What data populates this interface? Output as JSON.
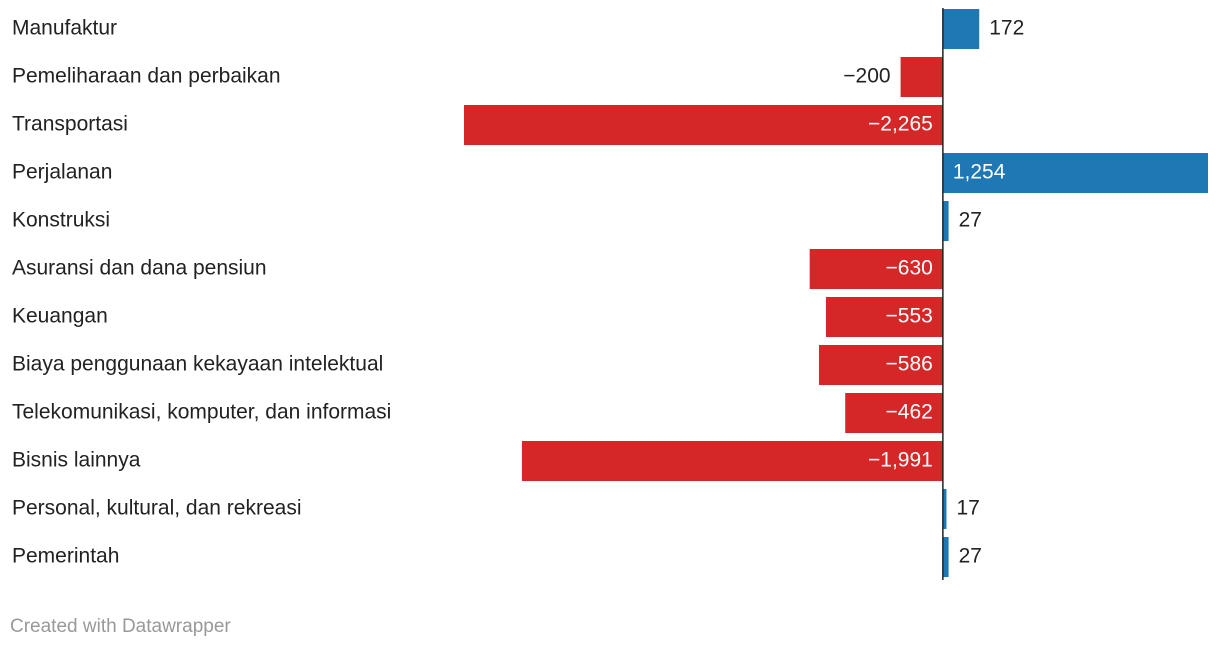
{
  "chart_data": {
    "type": "bar",
    "orientation": "horizontal",
    "categories": [
      "Manufaktur",
      "Pemeliharaan dan perbaikan",
      "Transportasi",
      "Perjalanan",
      "Konstruksi",
      "Asuransi dan dana pensiun",
      "Keuangan",
      "Biaya penggunaan kekayaan intelektual",
      "Telekomunikasi, komputer, dan informasi",
      "Bisnis lainnya",
      "Personal, kultural, dan rekreasi",
      "Pemerintah"
    ],
    "values": [
      172,
      -200,
      -2265,
      1254,
      27,
      -630,
      -553,
      -586,
      -462,
      -1991,
      17,
      27
    ],
    "value_labels": [
      "172",
      "−200",
      "−2,265",
      "1,254",
      "27",
      "−630",
      "−553",
      "−586",
      "−462",
      "−1,991",
      "17",
      "27"
    ],
    "color_positive": "#1f77b4",
    "color_negative": "#d62728",
    "credit": "Created with Datawrapper"
  }
}
